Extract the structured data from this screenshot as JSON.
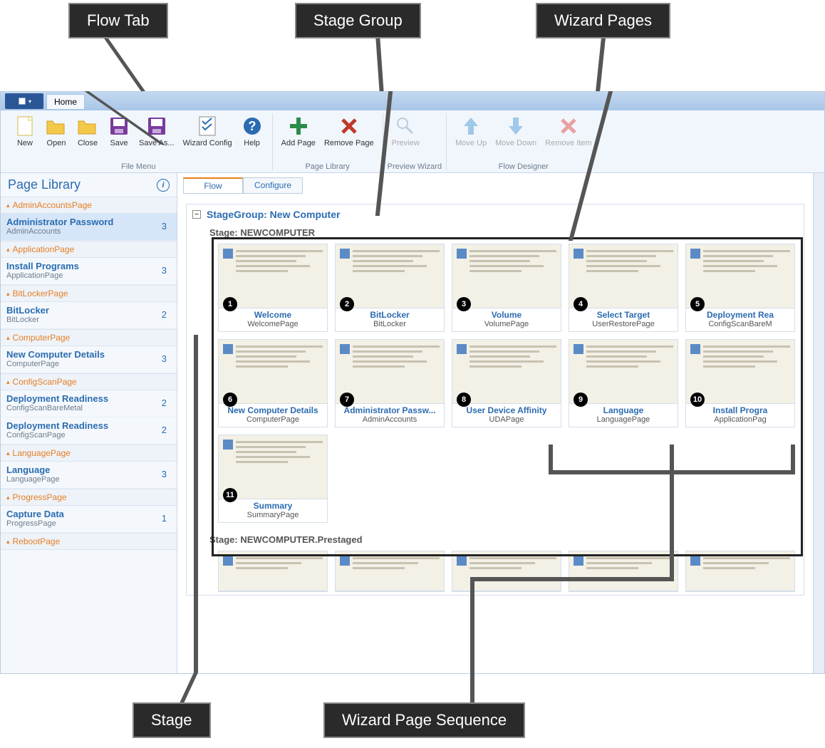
{
  "callouts": {
    "flowTab": "Flow Tab",
    "stageGroup": "Stage Group",
    "wizardPages": "Wizard Pages",
    "stage": "Stage",
    "wizardSeq": "Wizard Page Sequence"
  },
  "ribbon": {
    "homeTab": "Home",
    "groups": {
      "fileMenu": "File Menu",
      "pageLibrary": "Page Library",
      "previewWizard": "Preview Wizard",
      "flowDesigner": "Flow Designer"
    },
    "buttons": {
      "new": "New",
      "open": "Open",
      "close": "Close",
      "save": "Save",
      "saveAs": "Save As...",
      "wizardConfig": "Wizard Config",
      "help": "Help",
      "addPage": "Add Page",
      "removePage": "Remove Page",
      "preview": "Preview",
      "moveUp": "Move Up",
      "moveDown": "Move Down",
      "removeItem": "Remove Item"
    }
  },
  "sidebar": {
    "title": "Page Library",
    "cats": [
      {
        "name": "AdminAccountsPage",
        "items": [
          {
            "title": "Administrator Password",
            "sub": "AdminAccounts",
            "count": "3",
            "selected": true
          }
        ]
      },
      {
        "name": "ApplicationPage",
        "items": [
          {
            "title": "Install Programs",
            "sub": "ApplicationPage",
            "count": "3"
          }
        ]
      },
      {
        "name": "BitLockerPage",
        "items": [
          {
            "title": "BitLocker",
            "sub": "BitLocker",
            "count": "2"
          }
        ]
      },
      {
        "name": "ComputerPage",
        "items": [
          {
            "title": "New Computer Details",
            "sub": "ComputerPage",
            "count": "3"
          }
        ]
      },
      {
        "name": "ConfigScanPage",
        "items": [
          {
            "title": "Deployment Readiness",
            "sub": "ConfigScanBareMetal",
            "count": "2"
          },
          {
            "title": "Deployment Readiness",
            "sub": "ConfigScanPage",
            "count": "2"
          }
        ]
      },
      {
        "name": "LanguagePage",
        "items": [
          {
            "title": "Language",
            "sub": "LanguagePage",
            "count": "3"
          }
        ]
      },
      {
        "name": "ProgressPage",
        "items": [
          {
            "title": "Capture Data",
            "sub": "ProgressPage",
            "count": "1"
          }
        ]
      },
      {
        "name": "RebootPage",
        "items": []
      }
    ]
  },
  "main": {
    "tabs": {
      "flow": "Flow",
      "configure": "Configure"
    },
    "stageGroup": "StageGroup: New Computer",
    "stage1": "Stage: NEWCOMPUTER",
    "stage2": "Stage: NEWCOMPUTER.Prestaged",
    "cards": [
      {
        "n": "1",
        "title": "Welcome",
        "sub": "WelcomePage"
      },
      {
        "n": "2",
        "title": "BitLocker",
        "sub": "BitLocker"
      },
      {
        "n": "3",
        "title": "Volume",
        "sub": "VolumePage"
      },
      {
        "n": "4",
        "title": "Select Target",
        "sub": "UserRestorePage"
      },
      {
        "n": "5",
        "title": "Deployment Rea",
        "sub": "ConfigScanBareM"
      },
      {
        "n": "6",
        "title": "New Computer Details",
        "sub": "ComputerPage"
      },
      {
        "n": "7",
        "title": "Administrator Passw...",
        "sub": "AdminAccounts"
      },
      {
        "n": "8",
        "title": "User Device Affinity",
        "sub": "UDAPage"
      },
      {
        "n": "9",
        "title": "Language",
        "sub": "LanguagePage"
      },
      {
        "n": "10",
        "title": "Install Progra",
        "sub": "ApplicationPag"
      },
      {
        "n": "11",
        "title": "Summary",
        "sub": "SummaryPage"
      }
    ]
  },
  "colors": {
    "calloutBg": "#2a2a2a",
    "calloutBorder": "#888888",
    "accentBlue": "#2b6cb0",
    "accentOrange": "#e67e22",
    "ribbonBg": "#f1f6fc",
    "border": "#c7d6ea"
  }
}
